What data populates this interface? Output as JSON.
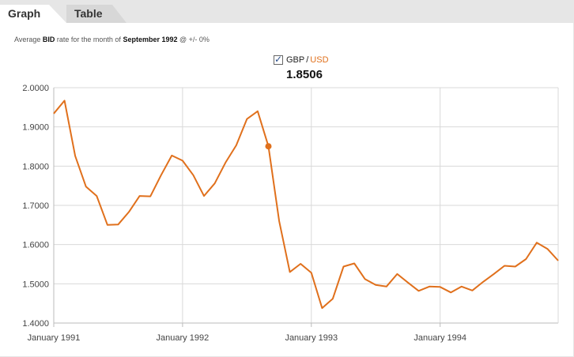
{
  "tabs": [
    {
      "label": "Graph",
      "active": true
    },
    {
      "label": "Table",
      "active": false
    }
  ],
  "caption": {
    "prefix": "Average",
    "rate_type": "BID",
    "middle": "rate for the month of",
    "period": "September 1992",
    "suffix": "@ +/- 0%"
  },
  "legend": {
    "checked": true,
    "base": "GBP",
    "separator": "/",
    "quote": "USD"
  },
  "current_value": "1.8506",
  "colors": {
    "line": "#e0701c",
    "grid": "#d9d9d9",
    "axis": "#bbbbbb"
  },
  "chart_data": {
    "type": "line",
    "title": "",
    "xlabel": "",
    "ylabel": "",
    "ylim": [
      1.4,
      2.0
    ],
    "y_ticks": [
      "1.4000",
      "1.5000",
      "1.6000",
      "1.7000",
      "1.8000",
      "1.9000",
      "2.0000"
    ],
    "x_tick_labels": [
      "January 1991",
      "January 1992",
      "January 1993",
      "January 1994"
    ],
    "highlighted": {
      "x": "1992-09",
      "y": 1.8506
    },
    "grid": true,
    "x": [
      "1991-01",
      "1991-02",
      "1991-03",
      "1991-04",
      "1991-05",
      "1991-06",
      "1991-07",
      "1991-08",
      "1991-09",
      "1991-10",
      "1991-11",
      "1991-12",
      "1992-01",
      "1992-02",
      "1992-03",
      "1992-04",
      "1992-05",
      "1992-06",
      "1992-07",
      "1992-08",
      "1992-09",
      "1992-10",
      "1992-11",
      "1992-12",
      "1993-01",
      "1993-02",
      "1993-03",
      "1993-04",
      "1993-05",
      "1993-06",
      "1993-07",
      "1993-08",
      "1993-09",
      "1993-10",
      "1993-11",
      "1993-12",
      "1994-01",
      "1994-02",
      "1994-03",
      "1994-04",
      "1994-05",
      "1994-06",
      "1994-07",
      "1994-08",
      "1994-09",
      "1994-10",
      "1994-11",
      "1994-12"
    ],
    "series": [
      {
        "values": [
          1.934,
          1.967,
          1.826,
          1.748,
          1.724,
          1.65,
          1.651,
          1.683,
          1.724,
          1.723,
          1.777,
          1.827,
          1.814,
          1.777,
          1.724,
          1.756,
          1.809,
          1.853,
          1.92,
          1.94,
          1.8506,
          1.66,
          1.53,
          1.551,
          1.528,
          1.438,
          1.462,
          1.544,
          1.552,
          1.512,
          1.497,
          1.493,
          1.525,
          1.503,
          1.482,
          1.493,
          1.492,
          1.478,
          1.493,
          1.483,
          1.505,
          1.525,
          1.546,
          1.544,
          1.563,
          1.605,
          1.589,
          1.559
        ]
      }
    ]
  }
}
